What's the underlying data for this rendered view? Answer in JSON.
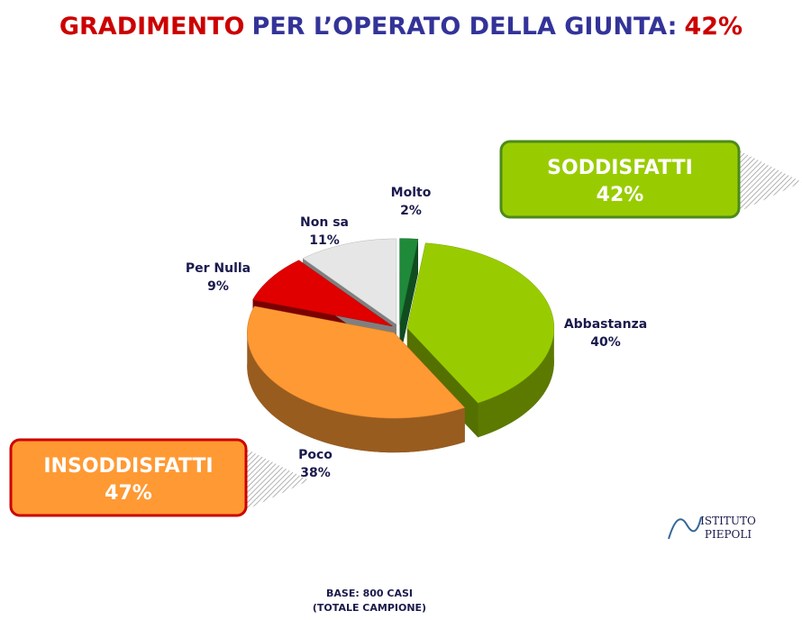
{
  "chart_data": {
    "type": "pie",
    "title": [
      "GRADIMENTO",
      "PER L’OPERATO DELLA GIUNTA:",
      "42%"
    ],
    "title_colors": [
      "#cc0000",
      "#333399",
      "#cc0000"
    ],
    "categories": [
      "Molto",
      "Abbastanza",
      "Poco",
      "Per Nulla",
      "Non sa"
    ],
    "values": [
      2,
      40,
      38,
      9,
      11
    ],
    "value_labels": [
      "2%",
      "40%",
      "38%",
      "9%",
      "11%"
    ],
    "colors": [
      "#1f8a3a",
      "#99cc00",
      "#ff9933",
      "#e00000",
      "#e6e6e6"
    ],
    "callouts": [
      {
        "label": "SODDISFATTI",
        "value": 42,
        "value_label": "42%",
        "color": "#99cc00",
        "border": "#4d8a1a"
      },
      {
        "label": "INSODDISFATTI",
        "value": 47,
        "value_label": "47%",
        "color": "#ff9933",
        "border": "#cc0000"
      }
    ],
    "logo": [
      "ISTITUTO",
      "PIEPOLI"
    ],
    "note": [
      "BASE: 800 CASI",
      "(TOTALE CAMPIONE)"
    ]
  }
}
